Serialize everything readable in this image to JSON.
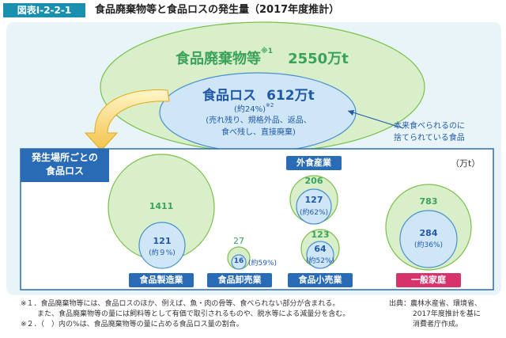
{
  "header": {
    "figure_number": "図表Ⅰ-2-2-1",
    "title": "食品廃棄物等と食品ロスの発生量（2017年度推計）"
  },
  "top": {
    "waste_label": "食品廃棄物等",
    "waste_note_mark": "※1",
    "waste_amount": "2550万t",
    "loss_label": "食品ロス",
    "loss_amount": "612万t",
    "loss_pct": "(約24%)",
    "loss_note_mark": "※2",
    "loss_detail_1": "(売れ残り、規格外品、返品、",
    "loss_detail_2": "食べ残し、直接廃棄)",
    "callout_1": "本来食べられるのに",
    "callout_2": "捨てられている食品"
  },
  "panel": {
    "heading_1": "発生場所ごとの",
    "heading_2": "食品ロス",
    "unit": "（万t）"
  },
  "sectors": [
    {
      "name": "食品製造業",
      "total": "1411",
      "loss": "121",
      "pct": "(約９%)"
    },
    {
      "name": "食品卸売業",
      "total": "27",
      "loss": "16",
      "pct": "(約59%)"
    },
    {
      "name": "外食産業",
      "total": "206",
      "loss": "127",
      "pct": "(約62%)"
    },
    {
      "name": "食品小売業",
      "total": "123",
      "loss": "64",
      "pct": "(約52%)"
    },
    {
      "name": "一般家庭",
      "total": "783",
      "loss": "284",
      "pct": "(約36%)"
    }
  ],
  "footnotes": {
    "note1_line1": "※１．食品廃棄物等には、食品ロスのほか、例えば、魚・肉の骨等、食べられない部分が含まれる。",
    "note1_line2": "また、食品廃棄物等の量には飼料等として有価で取引されるものや、脱水等による減量分を含む。",
    "note2": "※２．（　）内の%は、食品廃棄物等の量に占める食品ロス量の割合。",
    "source_1": "出典：農林水産省、環境省、",
    "source_2": "2017年度推計を基に",
    "source_3": "消費者庁作成。"
  },
  "colors": {
    "accent_blue": "#2a6bb5",
    "household_red": "#d6336c",
    "waste_green": "#3aa25a",
    "loss_blue": "#2159a6"
  }
}
